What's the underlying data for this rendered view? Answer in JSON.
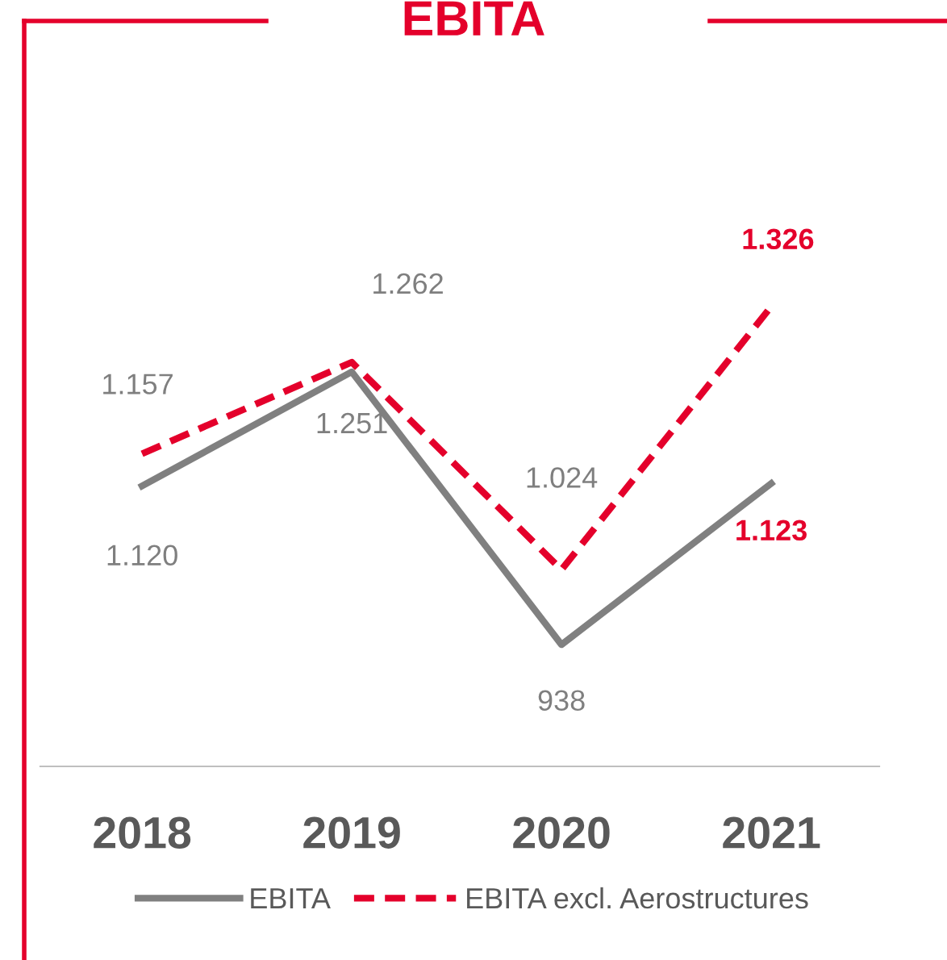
{
  "chart_data": {
    "type": "line",
    "title": "EBITA",
    "categories": [
      "2018",
      "2019",
      "2020",
      "2021"
    ],
    "series": [
      {
        "name": "EBITA",
        "color": "#808080",
        "line_style": "solid",
        "values": [
          1120,
          1251,
          938,
          1123
        ],
        "value_labels": [
          "1.120",
          "1.251",
          "938",
          "1.123"
        ]
      },
      {
        "name": "EBITA excl. Aerostructures",
        "color": "#e4002b",
        "line_style": "dashed",
        "values": [
          1157,
          1262,
          1024,
          1326
        ],
        "value_labels": [
          "1.157",
          "1.262",
          "1.024",
          "1.326"
        ]
      }
    ],
    "grid": false,
    "legend": "bottom",
    "marker": "none"
  }
}
